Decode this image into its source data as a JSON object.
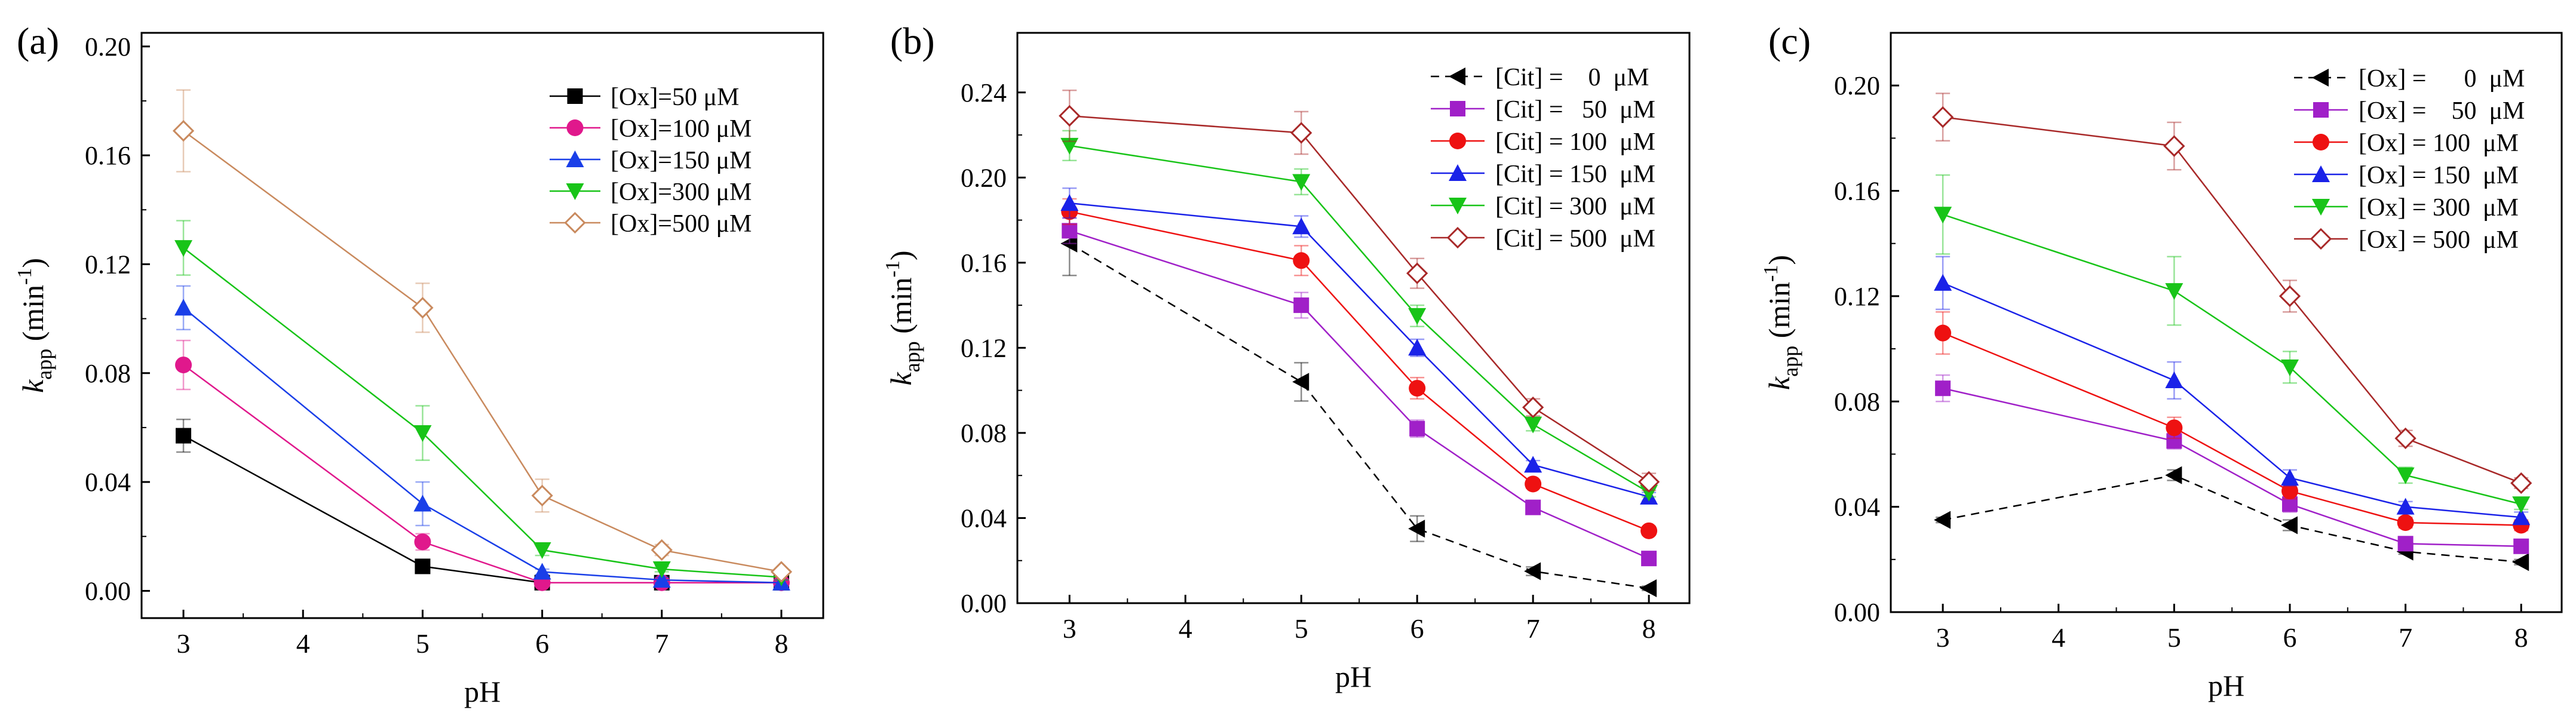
{
  "chart_data": [
    {
      "type": "line",
      "panel_label": "(a)",
      "xlabel": "pH",
      "ylabel_main": "k",
      "ylabel_sub": "app",
      "ylabel_unit_pre": " (min",
      "ylabel_unit_sup": "-1",
      "ylabel_unit_post": ")",
      "x_ticks": [
        "3",
        "4",
        "5",
        "6",
        "7",
        "8"
      ],
      "y_ticks": [
        "0.00",
        "0.04",
        "0.08",
        "0.12",
        "0.16",
        "0.20"
      ],
      "xlim": [
        2.65,
        8.35
      ],
      "ylim": [
        -0.01,
        0.205
      ],
      "grid": false,
      "legend_position": "top-right",
      "x": [
        3,
        5,
        6,
        7,
        8
      ],
      "series": [
        {
          "name": "[Ox]=50 μM",
          "color": "#000000",
          "marker": "square",
          "dashed": false,
          "values": [
            0.057,
            0.009,
            0.003,
            0.003,
            0.003
          ],
          "errors": [
            0.006,
            0.001,
            0.001,
            0.001,
            0.001
          ]
        },
        {
          "name": "[Ox]=100 μM",
          "color": "#e0188c",
          "marker": "circle",
          "dashed": false,
          "values": [
            0.083,
            0.018,
            0.003,
            0.003,
            0.003
          ],
          "errors": [
            0.009,
            0.003,
            0.001,
            0.001,
            0.001
          ]
        },
        {
          "name": "[Ox]=150 μM",
          "color": "#1a3fe8",
          "marker": "triangle-up",
          "dashed": false,
          "values": [
            0.104,
            0.032,
            0.007,
            0.004,
            0.003
          ],
          "errors": [
            0.008,
            0.008,
            0.001,
            0.001,
            0.001
          ]
        },
        {
          "name": "[Ox]=300 μM",
          "color": "#18c418",
          "marker": "triangle-down",
          "dashed": false,
          "values": [
            0.126,
            0.058,
            0.015,
            0.008,
            0.005
          ],
          "errors": [
            0.01,
            0.01,
            0.002,
            0.001,
            0.001
          ]
        },
        {
          "name": "[Ox]=500 μM",
          "color": "#c98a5e",
          "marker": "diamond-open",
          "dashed": false,
          "values": [
            0.169,
            0.104,
            0.035,
            0.015,
            0.007
          ],
          "errors": [
            0.015,
            0.009,
            0.006,
            0.002,
            0.001
          ]
        }
      ]
    },
    {
      "type": "line",
      "panel_label": "(b)",
      "xlabel": "pH",
      "ylabel_main": "k",
      "ylabel_sub": "app",
      "ylabel_unit_pre": " (min",
      "ylabel_unit_sup": "-1",
      "ylabel_unit_post": ")",
      "x_ticks": [
        "3",
        "4",
        "5",
        "6",
        "7",
        "8"
      ],
      "y_ticks": [
        "0.00",
        "0.04",
        "0.08",
        "0.12",
        "0.16",
        "0.20",
        "0.24"
      ],
      "xlim": [
        2.55,
        8.35
      ],
      "ylim": [
        0.0,
        0.268
      ],
      "grid": false,
      "legend_position": "top-right",
      "x": [
        3,
        5,
        6,
        7,
        8
      ],
      "series": [
        {
          "name": "[Cit] =    0  μM",
          "color": "#000000",
          "marker": "triangle-left",
          "dashed": true,
          "values": [
            0.169,
            0.104,
            0.035,
            0.015,
            0.007
          ],
          "errors": [
            0.015,
            0.009,
            0.006,
            0.002,
            0.001
          ]
        },
        {
          "name": "[Cit] =   50  μM",
          "color": "#a020c8",
          "marker": "square",
          "dashed": false,
          "values": [
            0.175,
            0.14,
            0.082,
            0.045,
            0.021
          ],
          "errors": [
            0.006,
            0.006,
            0.004,
            0.002,
            0.002
          ]
        },
        {
          "name": "[Cit] = 100  μM",
          "color": "#ee1111",
          "marker": "circle",
          "dashed": false,
          "values": [
            0.184,
            0.161,
            0.101,
            0.056,
            0.034
          ],
          "errors": [
            0.006,
            0.007,
            0.005,
            0.002,
            0.002
          ]
        },
        {
          "name": "[Cit] = 150  μM",
          "color": "#1a22e8",
          "marker": "triangle-up",
          "dashed": false,
          "values": [
            0.188,
            0.177,
            0.12,
            0.065,
            0.05
          ],
          "errors": [
            0.007,
            0.005,
            0.004,
            0.002,
            0.002
          ]
        },
        {
          "name": "[Cit] = 300  μM",
          "color": "#18c418",
          "marker": "triangle-down",
          "dashed": false,
          "values": [
            0.215,
            0.198,
            0.135,
            0.084,
            0.052
          ],
          "errors": [
            0.007,
            0.006,
            0.005,
            0.003,
            0.002
          ]
        },
        {
          "name": "[Cit] = 500  μM",
          "color": "#a82828",
          "marker": "diamond-open",
          "dashed": false,
          "values": [
            0.229,
            0.221,
            0.155,
            0.092,
            0.057
          ],
          "errors": [
            0.012,
            0.01,
            0.007,
            0.004,
            0.004
          ]
        }
      ]
    },
    {
      "type": "line",
      "panel_label": "(c)",
      "xlabel": "pH",
      "ylabel_main": "k",
      "ylabel_sub": "app",
      "ylabel_unit_pre": " (min",
      "ylabel_unit_sup": "-1",
      "ylabel_unit_post": ")",
      "x_ticks": [
        "3",
        "4",
        "5",
        "6",
        "7",
        "8"
      ],
      "y_ticks": [
        "0.00",
        "0.04",
        "0.08",
        "0.12",
        "0.16",
        "0.20"
      ],
      "xlim": [
        2.55,
        8.35
      ],
      "ylim": [
        0.0,
        0.22
      ],
      "grid": false,
      "legend_position": "top-right",
      "x": [
        3,
        5,
        6,
        7,
        8
      ],
      "series": [
        {
          "name": "[Ox] =      0  μM",
          "color": "#000000",
          "marker": "triangle-left",
          "dashed": true,
          "values": [
            0.035,
            0.052,
            0.033,
            0.023,
            0.019
          ],
          "errors": [
            0.001,
            0.002,
            0.002,
            0.001,
            0.001
          ]
        },
        {
          "name": "[Ox] =    50  μM",
          "color": "#a020c8",
          "marker": "square",
          "dashed": false,
          "values": [
            0.085,
            0.065,
            0.041,
            0.026,
            0.025
          ],
          "errors": [
            0.005,
            0.003,
            0.003,
            0.002,
            0.002
          ]
        },
        {
          "name": "[Ox] = 100  μM",
          "color": "#ee1111",
          "marker": "circle",
          "dashed": false,
          "values": [
            0.106,
            0.07,
            0.046,
            0.034,
            0.033
          ],
          "errors": [
            0.008,
            0.004,
            0.003,
            0.002,
            0.002
          ]
        },
        {
          "name": "[Ox] = 150  μM",
          "color": "#1a22e8",
          "marker": "triangle-up",
          "dashed": false,
          "values": [
            0.125,
            0.088,
            0.051,
            0.04,
            0.036
          ],
          "errors": [
            0.01,
            0.007,
            0.003,
            0.002,
            0.002
          ]
        },
        {
          "name": "[Ox] = 300  μM",
          "color": "#18c418",
          "marker": "triangle-down",
          "dashed": false,
          "values": [
            0.151,
            0.122,
            0.093,
            0.052,
            0.041
          ],
          "errors": [
            0.015,
            0.013,
            0.006,
            0.003,
            0.002
          ]
        },
        {
          "name": "[Ox] = 500  μM",
          "color": "#a82828",
          "marker": "diamond-open",
          "dashed": false,
          "values": [
            0.188,
            0.177,
            0.12,
            0.066,
            0.049
          ],
          "errors": [
            0.009,
            0.009,
            0.006,
            0.003,
            0.002
          ]
        }
      ]
    }
  ]
}
